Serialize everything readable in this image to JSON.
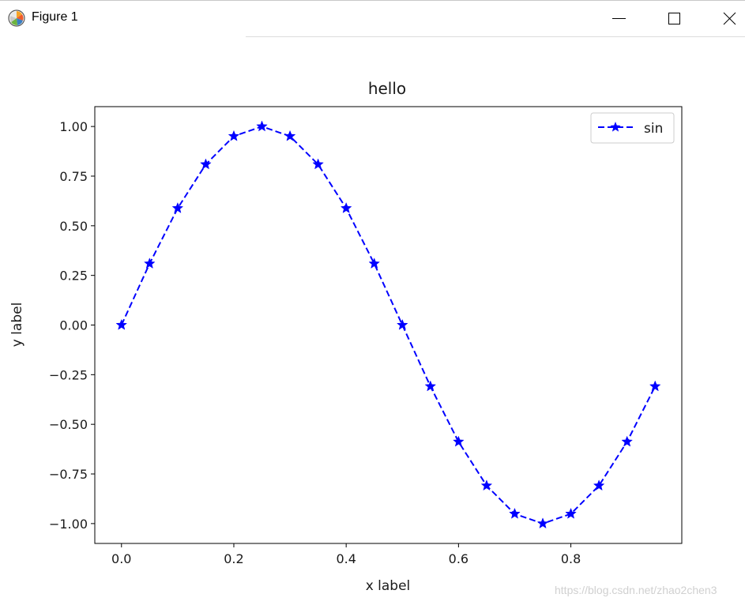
{
  "window": {
    "title": "Figure 1",
    "icon": "matplotlib-icon",
    "controls": [
      "minimize-icon",
      "maximize-icon",
      "close-icon"
    ]
  },
  "chart_data": {
    "type": "line",
    "title": "hello",
    "xlabel": "x label",
    "ylabel": "y label",
    "xlim": [
      -0.0475,
      0.9975
    ],
    "ylim": [
      -1.1,
      1.1
    ],
    "xticks": [
      0.0,
      0.2,
      0.4,
      0.6,
      0.8
    ],
    "xtick_labels": [
      "0.0",
      "0.2",
      "0.4",
      "0.6",
      "0.8"
    ],
    "yticks": [
      1.0,
      0.75,
      0.5,
      0.25,
      0.0,
      -0.25,
      -0.5,
      -0.75,
      -1.0
    ],
    "ytick_labels": [
      "1.00",
      "0.75",
      "0.50",
      "0.25",
      "0.00",
      "−0.25",
      "−0.50",
      "−0.75",
      "−1.00"
    ],
    "grid": false,
    "legend_position": "upper right",
    "series": [
      {
        "name": "sin",
        "color": "#0000ff",
        "linestyle": "dashed",
        "marker": "star",
        "x": [
          0.0,
          0.05,
          0.1,
          0.15,
          0.2,
          0.25,
          0.3,
          0.35,
          0.4,
          0.45,
          0.5,
          0.55,
          0.6,
          0.65,
          0.7,
          0.75,
          0.8,
          0.85,
          0.9,
          0.95
        ],
        "y": [
          0.0,
          0.309,
          0.588,
          0.809,
          0.951,
          1.0,
          0.951,
          0.809,
          0.588,
          0.309,
          0.0,
          -0.309,
          -0.588,
          -0.809,
          -0.951,
          -1.0,
          -0.951,
          -0.809,
          -0.588,
          -0.309
        ]
      }
    ]
  },
  "watermark": "https://blog.csdn.net/zhao2chen3"
}
